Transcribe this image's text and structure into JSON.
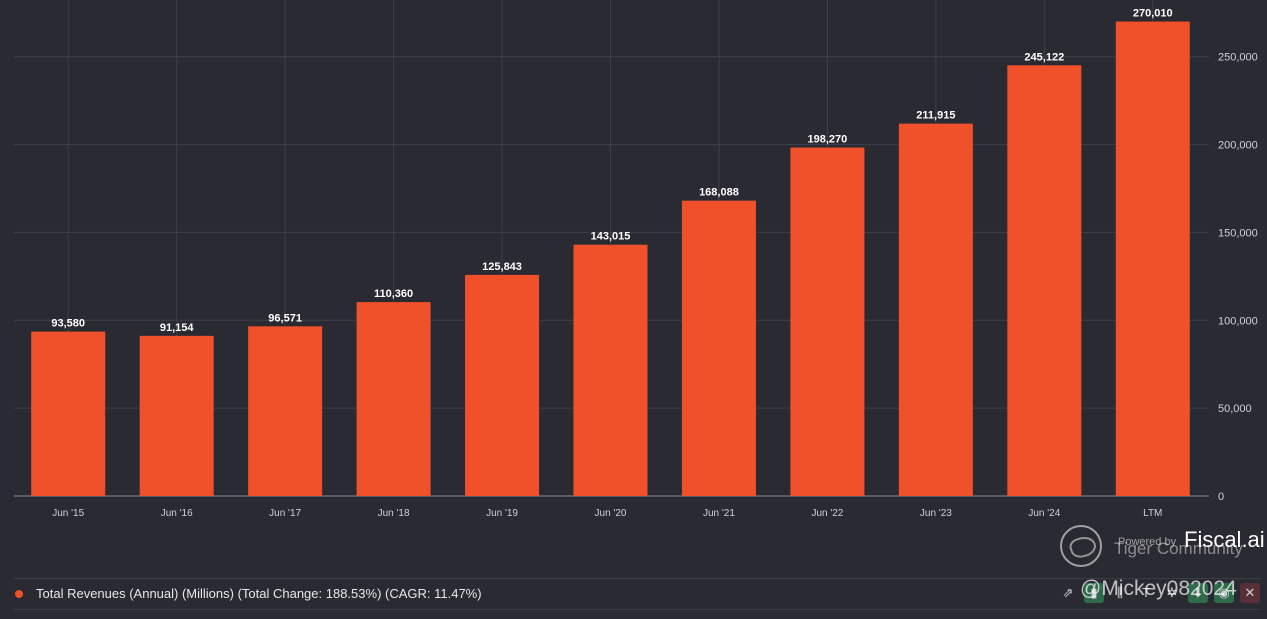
{
  "colors": {
    "background": "#2a2a33",
    "bar": "#f0502a",
    "grid": "#3f3f4a",
    "axis_text": "#d0d0d6",
    "label_text": "#ffffff"
  },
  "chart_data": {
    "type": "bar",
    "categories": [
      "Jun '15",
      "Jun '16",
      "Jun '17",
      "Jun '18",
      "Jun '19",
      "Jun '20",
      "Jun '21",
      "Jun '22",
      "Jun '23",
      "Jun '24",
      "LTM"
    ],
    "values": [
      93580,
      91154,
      96571,
      110360,
      125843,
      143015,
      168088,
      198270,
      211915,
      245122,
      270010
    ],
    "value_labels": [
      "93,580",
      "91,154",
      "96,571",
      "110,360",
      "125,843",
      "143,015",
      "168,088",
      "198,270",
      "211,915",
      "245,122",
      "270,010"
    ],
    "y_ticks": [
      0,
      50000,
      100000,
      150000,
      200000,
      250000
    ],
    "y_tick_labels": [
      "0",
      "50,000",
      "100,000",
      "150,000",
      "200,000",
      "250,000"
    ],
    "ylim": [
      0,
      280000
    ],
    "y_axis_side": "right",
    "grid": true,
    "title": "",
    "xlabel": "",
    "ylabel": ""
  },
  "legend": {
    "label": "Total Revenues (Annual) (Millions) (Total Change: 188.53%) (CAGR: 11.47%)",
    "placement": "bottom-left"
  },
  "watermark": {
    "powered_by": "Powered by",
    "brand": "Fiscal.ai",
    "community": "Tiger Community",
    "user": "@Mickey082024",
    "logo_icon": "tiger-logo-icon"
  },
  "toolbar": {
    "icons": [
      "trend-icon",
      "bar-chart-icon",
      "column-chart-icon",
      "font-size-icon",
      "settings-icon",
      "download-icon",
      "visibility-icon",
      "close-icon"
    ],
    "glyphs": [
      "⇗",
      "▮",
      "⫼",
      "T",
      "✲",
      "⬇",
      "◉",
      "✕"
    ]
  }
}
